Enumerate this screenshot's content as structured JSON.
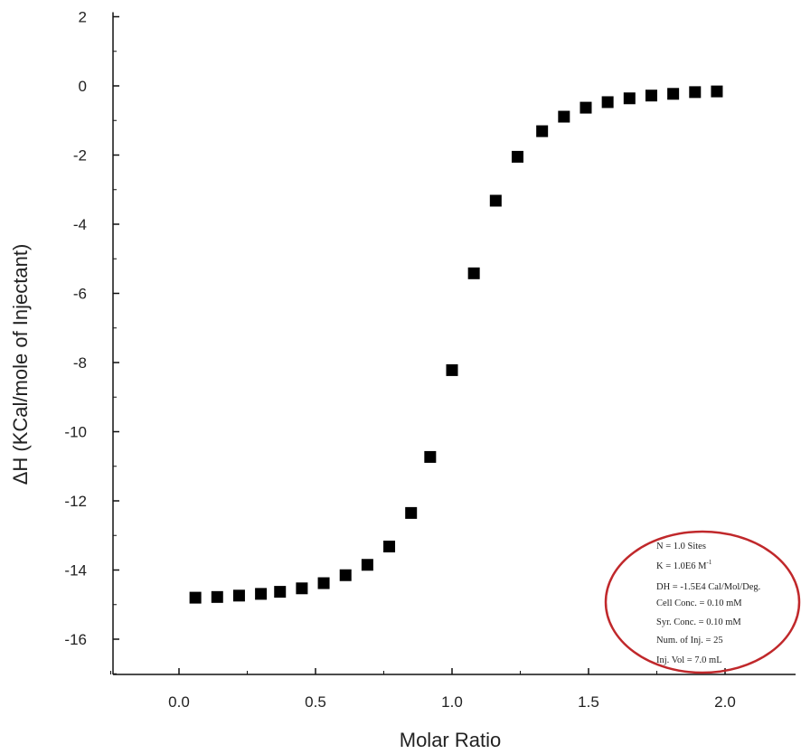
{
  "chart_data": {
    "type": "scatter",
    "xlabel": "Molar Ratio",
    "ylabel": "ΔH (KCal/mole of Injectant)",
    "xlim": [
      -0.3,
      2.2
    ],
    "ylim": [
      -17,
      2
    ],
    "x_ticks": [
      0.0,
      0.5,
      1.0,
      1.5,
      2.0
    ],
    "x_tick_labels": [
      "0.0",
      "0.5",
      "1.0",
      "1.5",
      "2.0"
    ],
    "y_ticks": [
      2,
      0,
      -2,
      -4,
      -6,
      -8,
      -10,
      -12,
      -14,
      -16
    ],
    "y_tick_labels": [
      "2",
      "0",
      "-2",
      "-4",
      "-6",
      "-8",
      "-10",
      "-12",
      "-14",
      "-16"
    ],
    "grid": false,
    "marker": "square",
    "marker_color": "#000000",
    "series": [
      {
        "x": [
          0.06,
          0.14,
          0.22,
          0.3,
          0.37,
          0.45,
          0.53,
          0.61,
          0.69,
          0.77,
          0.85,
          0.92,
          1.0,
          1.08,
          1.16,
          1.24,
          1.33,
          1.41,
          1.49,
          1.57,
          1.65,
          1.73,
          1.81,
          1.89,
          1.97
        ],
        "y": [
          -14.8,
          -14.78,
          -14.74,
          -14.69,
          -14.63,
          -14.53,
          -14.38,
          -14.15,
          -13.85,
          -13.32,
          -12.35,
          -10.73,
          -8.22,
          -5.42,
          -3.32,
          -2.05,
          -1.31,
          -0.89,
          -0.63,
          -0.47,
          -0.36,
          -0.28,
          -0.23,
          -0.18,
          -0.16
        ]
      }
    ],
    "annotation": {
      "lines": [
        "N = 1.0 Sites",
        "K = 1.0E6 M",
        "DH = -1.5E4 Cal/Mol/Deg.",
        "Cell Conc. = 0.10 mM",
        "Syr. Conc. = 0.10 mM",
        "Num. of Inj. = 25",
        "Inj. Vol = 7.0 mL"
      ],
      "k_superscript": "-1",
      "circle_color": "#c0282b"
    }
  }
}
